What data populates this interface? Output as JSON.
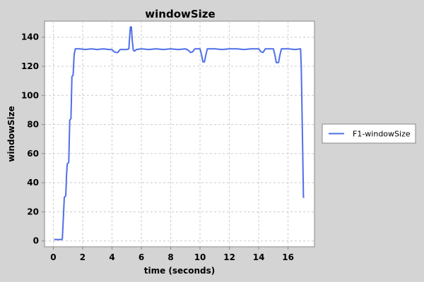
{
  "chart_data": {
    "type": "line",
    "title": "windowSize",
    "xlabel": "time (seconds)",
    "ylabel": "windowSize",
    "xlim": [
      -0.6,
      17.8
    ],
    "ylim": [
      -4,
      151
    ],
    "xticks": [
      0,
      2,
      4,
      6,
      8,
      10,
      12,
      14,
      16
    ],
    "yticks": [
      0,
      20,
      40,
      60,
      80,
      100,
      120,
      140
    ],
    "grid": true,
    "legend_position": "right",
    "series": [
      {
        "name": "F1-windowSize",
        "color": "#4e6fe8",
        "points": [
          [
            0.05,
            1
          ],
          [
            0.6,
            1
          ],
          [
            0.62,
            2
          ],
          [
            0.75,
            30
          ],
          [
            0.85,
            31
          ],
          [
            0.9,
            45
          ],
          [
            0.95,
            53
          ],
          [
            1.05,
            54
          ],
          [
            1.12,
            83
          ],
          [
            1.2,
            84
          ],
          [
            1.27,
            113
          ],
          [
            1.35,
            114
          ],
          [
            1.42,
            128
          ],
          [
            1.5,
            132
          ],
          [
            1.8,
            132
          ],
          [
            2.2,
            131.5
          ],
          [
            2.6,
            132
          ],
          [
            3.0,
            131.5
          ],
          [
            3.4,
            132
          ],
          [
            3.8,
            131.5
          ],
          [
            4.0,
            131.5
          ],
          [
            4.15,
            130
          ],
          [
            4.25,
            129.5
          ],
          [
            4.4,
            129.5
          ],
          [
            4.55,
            131.5
          ],
          [
            5.0,
            131.5
          ],
          [
            5.15,
            132
          ],
          [
            5.2,
            140
          ],
          [
            5.25,
            147
          ],
          [
            5.32,
            147
          ],
          [
            5.38,
            138
          ],
          [
            5.45,
            131
          ],
          [
            5.55,
            130.5
          ],
          [
            5.65,
            131.5
          ],
          [
            6.0,
            132
          ],
          [
            6.5,
            131.5
          ],
          [
            7.0,
            132
          ],
          [
            7.5,
            131.5
          ],
          [
            8.0,
            132
          ],
          [
            8.5,
            131.5
          ],
          [
            9.0,
            132
          ],
          [
            9.2,
            131
          ],
          [
            9.35,
            129.5
          ],
          [
            9.5,
            130
          ],
          [
            9.65,
            132
          ],
          [
            10.0,
            132
          ],
          [
            10.1,
            128
          ],
          [
            10.2,
            123
          ],
          [
            10.3,
            123
          ],
          [
            10.4,
            128
          ],
          [
            10.5,
            132
          ],
          [
            11.0,
            132
          ],
          [
            11.5,
            131.5
          ],
          [
            12.0,
            132
          ],
          [
            12.5,
            132
          ],
          [
            13.0,
            131.5
          ],
          [
            13.5,
            132
          ],
          [
            14.0,
            132
          ],
          [
            14.15,
            130
          ],
          [
            14.3,
            129.5
          ],
          [
            14.45,
            132
          ],
          [
            15.0,
            132
          ],
          [
            15.1,
            128
          ],
          [
            15.2,
            122.5
          ],
          [
            15.35,
            122.5
          ],
          [
            15.45,
            128
          ],
          [
            15.55,
            132
          ],
          [
            16.0,
            132
          ],
          [
            16.5,
            131.5
          ],
          [
            16.85,
            132
          ],
          [
            16.9,
            120
          ],
          [
            17.0,
            60
          ],
          [
            17.05,
            30
          ],
          [
            17.1,
            30
          ]
        ]
      }
    ]
  }
}
